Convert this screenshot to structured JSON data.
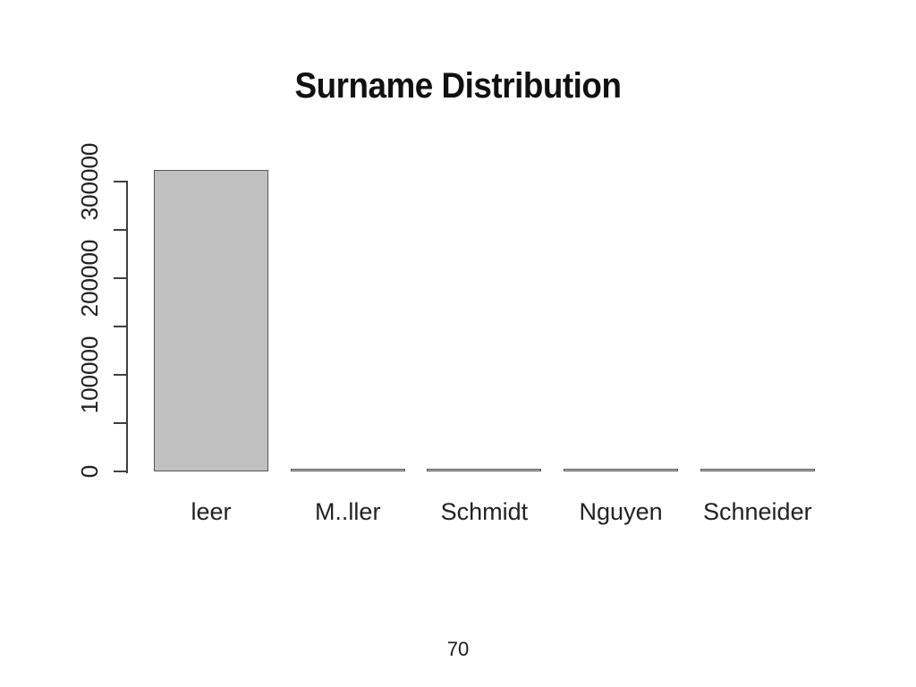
{
  "slide": {
    "title": "Surname Distribution",
    "page_number": "70"
  },
  "colors": {
    "background": "#ffffff",
    "text": "#1a1a1a",
    "bar_fill": "#c1c1c1",
    "bar_border": "#565656",
    "axis": "#404040"
  },
  "chart_data": {
    "type": "bar",
    "title": "Surname Distribution",
    "categories": [
      "leer",
      "M..ller",
      "Schmidt",
      "Nguyen",
      "Schneider"
    ],
    "values": [
      312000,
      2000,
      2000,
      2000,
      2000
    ],
    "xlabel": "",
    "ylabel": "",
    "ylim": [
      0,
      300000
    ],
    "grid": false,
    "legend": false,
    "y_axis": {
      "ticks": [
        0,
        50000,
        100000,
        150000,
        200000,
        250000,
        300000
      ],
      "labels": [
        {
          "value": 0,
          "text": "0"
        },
        {
          "value": 100000,
          "text": "100000"
        },
        {
          "value": 200000,
          "text": "200000"
        },
        {
          "value": 300000,
          "text": "300000"
        }
      ]
    }
  }
}
